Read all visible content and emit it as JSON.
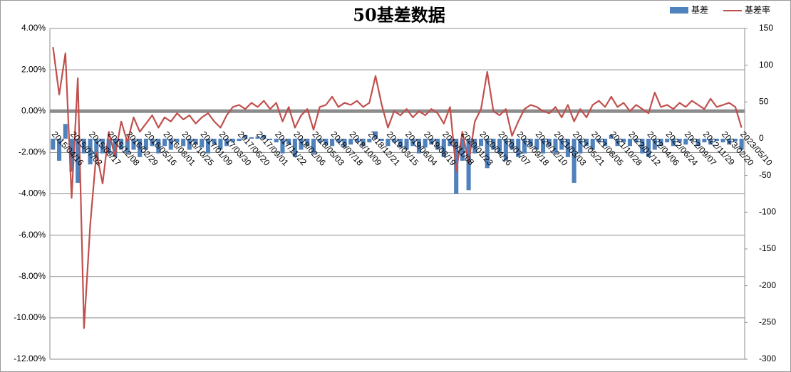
{
  "chart_data": {
    "type": "combo",
    "title": "50基差数据",
    "categories": [
      "2015/04/16",
      null,
      null,
      "2015/07/02",
      null,
      null,
      "2015/09/17",
      null,
      null,
      "2015/12/08",
      null,
      null,
      "2016/02/29",
      null,
      null,
      "2016/05/16",
      null,
      null,
      "2016/08/01",
      null,
      null,
      "2016/10/25",
      null,
      null,
      "2017/01/09",
      null,
      null,
      "2017/03/30",
      null,
      null,
      "2017/06/20",
      null,
      null,
      "2017/09/01",
      null,
      null,
      "2017/11/22",
      null,
      null,
      "2018/02/06",
      null,
      null,
      "2018/05/03",
      null,
      null,
      "2018/07/18",
      null,
      null,
      "2018/10/09",
      null,
      null,
      "2018/12/21",
      null,
      null,
      "2019/03/15",
      null,
      null,
      "2019/06/04",
      null,
      null,
      "2019/08/19",
      null,
      null,
      "2019/11/08",
      null,
      null,
      "2020/01/23",
      null,
      null,
      "2020/04/16",
      null,
      null,
      "2020/07/07",
      null,
      null,
      "2020/09/18",
      null,
      null,
      "2020/12/10",
      null,
      null,
      "2021/03/03",
      null,
      null,
      "2021/05/21",
      null,
      null,
      "2021/08/05",
      null,
      null,
      "2021/10/28",
      null,
      null,
      "2022/01/12",
      null,
      null,
      "2022/04/06",
      null,
      null,
      "2022/06/24",
      null,
      null,
      "2022/09/07",
      null,
      null,
      "2022/11/29",
      null,
      null,
      "2023/02/20",
      null,
      null,
      "2023/05/10"
    ],
    "series": [
      {
        "name": "基差",
        "type": "bar",
        "axis": "y2",
        "color": "#4f81bd",
        "values": [
          -15,
          -30,
          20,
          -45,
          -60,
          -20,
          -35,
          -25,
          -20,
          -20,
          -25,
          -15,
          -20,
          -15,
          -25,
          -15,
          -10,
          -20,
          -10,
          -15,
          -5,
          -10,
          -15,
          -8,
          -12,
          -20,
          -8,
          -15,
          -10,
          -5,
          -3,
          5,
          2,
          3,
          5,
          -2,
          -5,
          -20,
          -8,
          -25,
          -15,
          -10,
          -20,
          -5,
          -8,
          -10,
          -5,
          -12,
          -8,
          -5,
          -10,
          -5,
          10,
          -3,
          -10,
          -5,
          -12,
          -15,
          -10,
          -20,
          -12,
          -8,
          -15,
          -25,
          -10,
          -75,
          -30,
          -70,
          -20,
          -10,
          -40,
          -15,
          -20,
          -30,
          -15,
          -25,
          -20,
          -10,
          -15,
          -20,
          -10,
          -20,
          -15,
          -25,
          -60,
          -20,
          -10,
          -15,
          -5,
          -10,
          5,
          -10,
          -5,
          -10,
          -5,
          -20,
          -25,
          -15,
          -10,
          -5,
          -10,
          -5,
          -8,
          -3,
          -10,
          -5,
          -8,
          -3,
          -5,
          -8,
          -4,
          -15
        ]
      },
      {
        "name": "基差率",
        "type": "line",
        "color": "#c0504d",
        "values": [
          3.1,
          0.8,
          2.8,
          -4.2,
          1.6,
          -10.5,
          -5.5,
          -2.0,
          -3.5,
          -1.0,
          -2.2,
          -0.5,
          -1.5,
          -0.3,
          -1.0,
          -0.6,
          -0.2,
          -0.8,
          -0.3,
          -0.5,
          -0.1,
          -0.4,
          -0.2,
          -0.6,
          -0.3,
          -0.1,
          -0.5,
          -0.8,
          -0.2,
          0.2,
          0.3,
          0.1,
          0.4,
          0.2,
          0.5,
          0.1,
          0.4,
          -0.5,
          0.2,
          -0.8,
          -0.2,
          0.1,
          -0.9,
          0.2,
          0.3,
          0.7,
          0.2,
          0.4,
          0.3,
          0.5,
          0.2,
          0.4,
          1.7,
          0.3,
          -0.8,
          0.0,
          -0.2,
          0.1,
          -0.3,
          0.0,
          -0.2,
          0.1,
          -0.1,
          -0.6,
          0.2,
          -2.9,
          -1.0,
          -2.5,
          -0.5,
          0.1,
          1.9,
          0.0,
          -0.2,
          0.1,
          -1.2,
          -0.5,
          0.1,
          0.3,
          0.2,
          0.0,
          -0.1,
          0.2,
          -0.3,
          0.3,
          -0.5,
          0.1,
          -0.3,
          0.3,
          0.5,
          0.2,
          0.7,
          0.2,
          0.4,
          0.0,
          0.3,
          0.1,
          -0.1,
          0.9,
          0.2,
          0.3,
          0.1,
          0.4,
          0.2,
          0.5,
          0.3,
          0.1,
          0.6,
          0.2,
          0.3,
          0.4,
          0.2,
          -0.8
        ]
      }
    ],
    "ylim": [
      -12,
      4
    ],
    "yticks": [
      {
        "value": 4,
        "label": "4.00%"
      },
      {
        "value": 2,
        "label": "2.00%"
      },
      {
        "value": 0,
        "label": "0.00%"
      },
      {
        "value": -2,
        "label": "-2.00%"
      },
      {
        "value": -4,
        "label": "-4.00%"
      },
      {
        "value": -6,
        "label": "-6.00%"
      },
      {
        "value": -8,
        "label": "-8.00%"
      },
      {
        "value": -10,
        "label": "-10.00%"
      },
      {
        "value": -12,
        "label": "-12.00%"
      }
    ],
    "y2lim": [
      -300,
      150
    ],
    "y2ticks": [
      150,
      100,
      50,
      0,
      -50,
      -100,
      -150,
      -200,
      -250,
      -300
    ],
    "grid": true,
    "legend": "top-right"
  }
}
